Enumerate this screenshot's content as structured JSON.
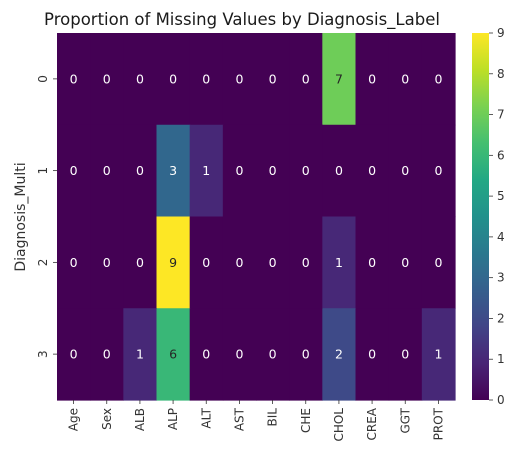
{
  "chart_data": {
    "type": "heatmap",
    "title": "Proportion of Missing Values by Diagnosis_Label",
    "xlabel": "",
    "ylabel": "Diagnosis_Multi",
    "x_categories": [
      "Age",
      "Sex",
      "ALB",
      "ALP",
      "ALT",
      "AST",
      "BIL",
      "CHE",
      "CHOL",
      "CREA",
      "GGT",
      "PROT"
    ],
    "y_categories": [
      "0",
      "1",
      "2",
      "3"
    ],
    "values": [
      [
        0,
        0,
        0,
        0,
        0,
        0,
        0,
        0,
        7,
        0,
        0,
        0
      ],
      [
        0,
        0,
        0,
        3,
        1,
        0,
        0,
        0,
        0,
        0,
        0,
        0
      ],
      [
        0,
        0,
        0,
        9,
        0,
        0,
        0,
        0,
        1,
        0,
        0,
        0
      ],
      [
        0,
        0,
        1,
        6,
        0,
        0,
        0,
        0,
        2,
        0,
        0,
        1
      ]
    ],
    "colorbar": {
      "colormap": "viridis",
      "range": [
        0,
        9
      ],
      "ticks": [
        0,
        1,
        2,
        3,
        4,
        5,
        6,
        7,
        8,
        9
      ]
    },
    "annotations": true
  }
}
